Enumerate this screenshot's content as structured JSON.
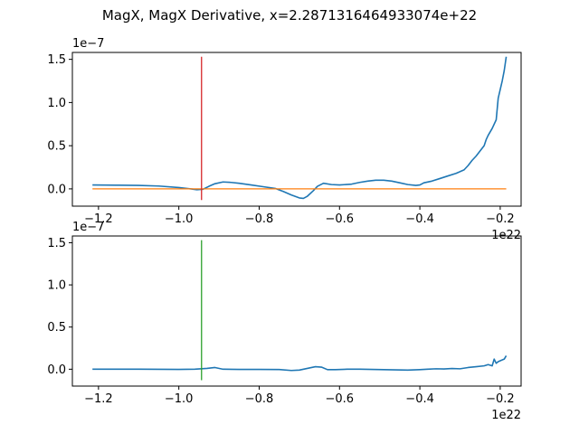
{
  "figure": {
    "title": "MagX, MagX Derivative, x=2.2871316464933074e+22"
  },
  "chart_data": [
    {
      "type": "line",
      "name_hint": "top-panel",
      "xlim": [
        -1.265,
        -0.148
      ],
      "ylim": [
        -0.2,
        1.58
      ],
      "x_ticks": [
        -1.2,
        -1.0,
        -0.8,
        -0.6,
        -0.4,
        -0.2
      ],
      "x_tick_labels": [
        "−1.2",
        "−1.0",
        "−0.8",
        "−0.6",
        "−0.4",
        "−0.2"
      ],
      "y_ticks": [
        0.0,
        0.5,
        1.0,
        1.5
      ],
      "y_tick_labels": [
        "0.0",
        "0.5",
        "1.0",
        "1.5"
      ],
      "x_offset_label": "1e22",
      "y_offset_label": "1e−7",
      "series": [
        {
          "color": "#1f77b4",
          "x": [
            -1.215,
            -1.15,
            -1.1,
            -1.05,
            -1.0,
            -0.97,
            -0.955,
            -0.94,
            -0.925,
            -0.91,
            -0.89,
            -0.87,
            -0.85,
            -0.82,
            -0.79,
            -0.76,
            -0.74,
            -0.72,
            -0.7,
            -0.69,
            -0.68,
            -0.665,
            -0.655,
            -0.64,
            -0.62,
            -0.6,
            -0.57,
            -0.55,
            -0.53,
            -0.51,
            -0.49,
            -0.47,
            -0.45,
            -0.43,
            -0.41,
            -0.4,
            -0.39,
            -0.37,
            -0.35,
            -0.33,
            -0.31,
            -0.29,
            -0.28,
            -0.27,
            -0.26,
            -0.25,
            -0.24,
            -0.235,
            -0.23,
            -0.22,
            -0.21,
            -0.205,
            -0.2,
            -0.195,
            -0.19,
            -0.185
          ],
          "y": [
            0.045,
            0.043,
            0.04,
            0.033,
            0.015,
            0.0,
            -0.01,
            -0.005,
            0.03,
            0.06,
            0.08,
            0.075,
            0.065,
            0.045,
            0.025,
            0.005,
            -0.03,
            -0.07,
            -0.105,
            -0.11,
            -0.085,
            -0.02,
            0.03,
            0.065,
            0.05,
            0.045,
            0.055,
            0.075,
            0.09,
            0.1,
            0.1,
            0.09,
            0.07,
            0.05,
            0.04,
            0.045,
            0.07,
            0.09,
            0.12,
            0.15,
            0.18,
            0.22,
            0.27,
            0.33,
            0.38,
            0.44,
            0.5,
            0.57,
            0.62,
            0.7,
            0.8,
            1.05,
            1.15,
            1.25,
            1.37,
            1.53
          ]
        },
        {
          "color": "#ff7f0e",
          "x": [
            -1.215,
            -0.185
          ],
          "y": [
            0.0,
            0.0
          ]
        },
        {
          "color": "#d62728",
          "x": [
            -0.9435,
            -0.9435
          ],
          "y": [
            -0.13,
            1.53
          ]
        }
      ]
    },
    {
      "type": "line",
      "name_hint": "bottom-panel",
      "xlim": [
        -1.265,
        -0.148
      ],
      "ylim": [
        -0.2,
        1.58
      ],
      "x_ticks": [
        -1.2,
        -1.0,
        -0.8,
        -0.6,
        -0.4,
        -0.2
      ],
      "x_tick_labels": [
        "−1.2",
        "−1.0",
        "−0.8",
        "−0.6",
        "−0.4",
        "−0.2"
      ],
      "y_ticks": [
        0.0,
        0.5,
        1.0,
        1.5
      ],
      "y_tick_labels": [
        "0.0",
        "0.5",
        "1.0",
        "1.5"
      ],
      "x_offset_label": "1e22",
      "y_offset_label": "1e−7",
      "series": [
        {
          "color": "#1f77b4",
          "x": [
            -1.215,
            -1.1,
            -1.0,
            -0.96,
            -0.93,
            -0.91,
            -0.89,
            -0.85,
            -0.8,
            -0.75,
            -0.72,
            -0.7,
            -0.68,
            -0.66,
            -0.645,
            -0.63,
            -0.61,
            -0.58,
            -0.55,
            -0.52,
            -0.49,
            -0.46,
            -0.43,
            -0.4,
            -0.38,
            -0.36,
            -0.34,
            -0.32,
            -0.3,
            -0.28,
            -0.26,
            -0.24,
            -0.23,
            -0.22,
            -0.215,
            -0.21,
            -0.205,
            -0.2,
            -0.19,
            -0.185
          ],
          "y": [
            0.0,
            0.0,
            -0.002,
            0.0,
            0.01,
            0.02,
            0.0,
            -0.002,
            -0.002,
            -0.004,
            -0.015,
            -0.01,
            0.01,
            0.03,
            0.025,
            -0.005,
            -0.005,
            0.0,
            0.0,
            -0.002,
            -0.005,
            -0.008,
            -0.01,
            -0.005,
            0.0,
            0.005,
            0.003,
            0.008,
            0.005,
            0.02,
            0.03,
            0.04,
            0.055,
            0.04,
            0.12,
            0.07,
            0.09,
            0.1,
            0.12,
            0.16
          ]
        },
        {
          "color": "#2ca02c",
          "x": [
            -0.9435,
            -0.9435
          ],
          "y": [
            -0.13,
            1.53
          ]
        }
      ]
    }
  ]
}
